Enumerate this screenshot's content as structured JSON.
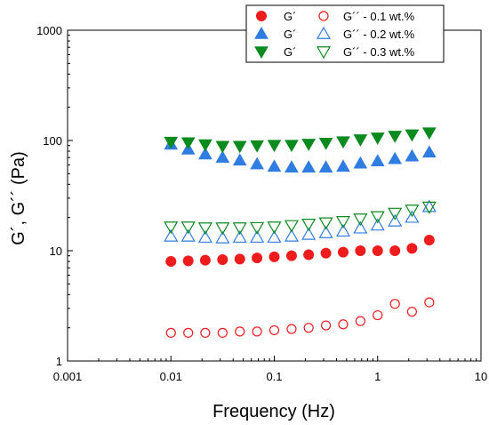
{
  "chart_data": {
    "type": "scatter",
    "title": "",
    "xlabel": "Frequency (Hz)",
    "ylabel": "G´, G´´ (Pa)",
    "xscale": "log",
    "yscale": "log",
    "xlim": [
      0.001,
      10
    ],
    "ylim": [
      1,
      1000
    ],
    "grid": false,
    "legend_position": "top-right",
    "x_ticks": [
      {
        "value": 0.001,
        "label": "0.001"
      },
      {
        "value": 0.01,
        "label": "0.01"
      },
      {
        "value": 0.1,
        "label": "0.1"
      },
      {
        "value": 1,
        "label": "1"
      },
      {
        "value": 10,
        "label": "10"
      }
    ],
    "y_ticks": [
      {
        "value": 1,
        "label": "1"
      },
      {
        "value": 10,
        "label": "10"
      },
      {
        "value": 100,
        "label": "100"
      },
      {
        "value": 1000,
        "label": "1000"
      }
    ],
    "x": [
      0.01,
      0.0147,
      0.0215,
      0.0316,
      0.0464,
      0.0681,
      0.1,
      0.147,
      0.215,
      0.316,
      0.464,
      0.681,
      1.0,
      1.47,
      2.15,
      3.16
    ],
    "legend_rows": [
      {
        "filled_symbol": "circle",
        "filled_label": "G´",
        "open_label": "G´´ - 0.1 wt.%",
        "color": "#ee1c1c"
      },
      {
        "filled_symbol": "triangle-up",
        "filled_label": "G´",
        "open_label": "G´´ - 0.2 wt.%",
        "color": "#2f7de1"
      },
      {
        "filled_symbol": "triangle-down",
        "filled_label": "G´",
        "open_label": "G´´ - 0.3 wt.%",
        "color": "#0b8a1e"
      }
    ],
    "series": [
      {
        "marker": "circle",
        "fill": "filled",
        "color": "#ee1c1c",
        "values": [
          8.0,
          8.1,
          8.2,
          8.3,
          8.4,
          8.6,
          8.8,
          9.0,
          9.2,
          9.5,
          9.7,
          10.0,
          10.0,
          10.0,
          10.5,
          12.5
        ]
      },
      {
        "marker": "circle",
        "fill": "open",
        "color": "#ee1c1c",
        "values": [
          1.8,
          1.8,
          1.8,
          1.8,
          1.85,
          1.85,
          1.9,
          1.95,
          2.0,
          2.1,
          2.15,
          2.3,
          2.6,
          3.3,
          2.8,
          3.4
        ]
      },
      {
        "marker": "triangle-up",
        "fill": "filled",
        "color": "#2f7de1",
        "values": [
          92,
          83,
          75,
          70,
          66,
          61,
          58,
          57,
          57,
          57,
          58,
          62,
          65,
          68,
          72,
          78
        ]
      },
      {
        "marker": "triangle-up",
        "fill": "open",
        "color": "#2f7de1",
        "values": [
          13.5,
          13.5,
          13.2,
          13.0,
          13.2,
          13.2,
          13.2,
          13.5,
          14.0,
          14.5,
          15.0,
          16.0,
          17.0,
          18.5,
          20.0,
          25.0
        ]
      },
      {
        "marker": "triangle-down",
        "fill": "filled",
        "color": "#0b8a1e",
        "values": [
          97,
          96,
          92,
          89,
          89,
          90,
          91,
          91,
          93,
          95,
          98,
          102,
          106,
          110,
          113,
          118
        ]
      },
      {
        "marker": "triangle-down",
        "fill": "open",
        "color": "#0b8a1e",
        "values": [
          16.5,
          16.5,
          16.2,
          16.2,
          16.2,
          16.3,
          16.5,
          17.0,
          17.5,
          18.0,
          18.5,
          19.5,
          20.5,
          22.0,
          23.5,
          25.0
        ]
      }
    ]
  }
}
